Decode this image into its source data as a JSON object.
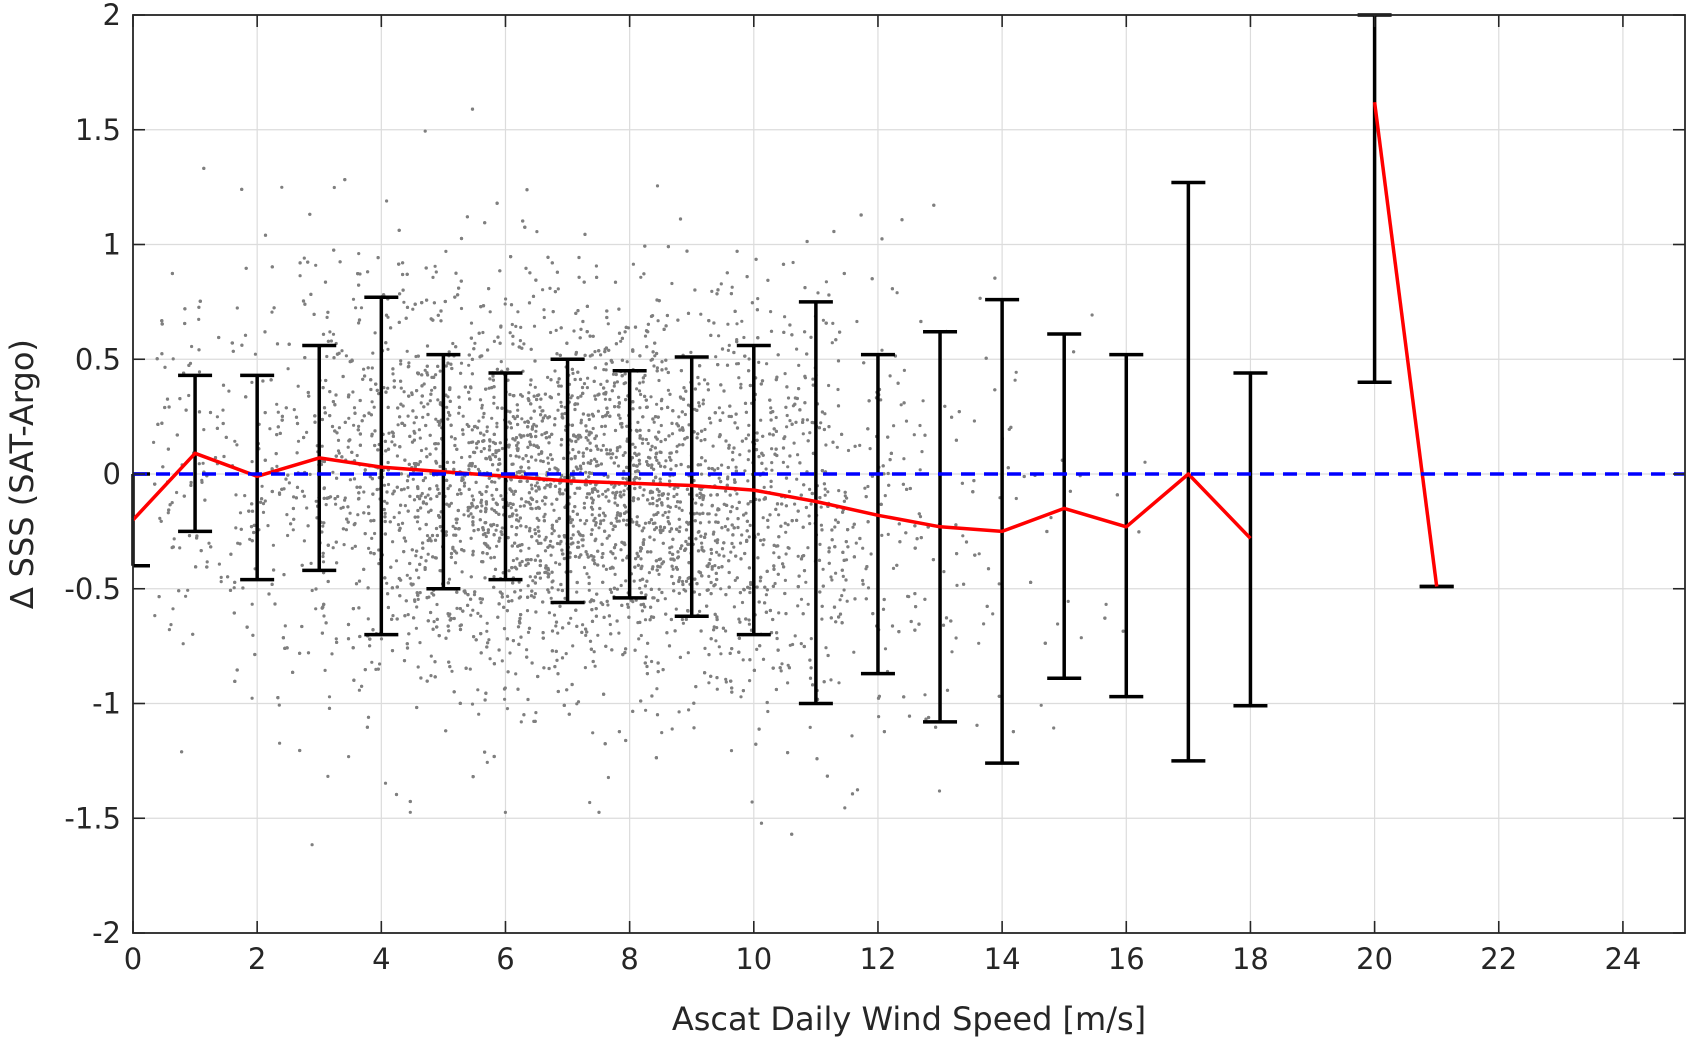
{
  "chart_data": {
    "type": "scatter",
    "title": "",
    "xlabel": "Ascat Daily Wind Speed [m/s]",
    "ylabel": "∆ SSS (SAT-Argo)",
    "xlim": [
      0,
      25
    ],
    "ylim": [
      -2,
      2
    ],
    "x_ticks": [
      0,
      2,
      4,
      6,
      8,
      10,
      12,
      14,
      16,
      18,
      20,
      22,
      24
    ],
    "y_ticks": [
      -2,
      -1.5,
      -1,
      -0.5,
      0,
      0.5,
      1,
      1.5,
      2
    ],
    "grid": true,
    "legend": "none",
    "colors": {
      "scatter": "#7f7f7f",
      "mean_line": "#ff0000",
      "error_bars": "#000000",
      "zero_line": "#0000ff"
    },
    "scatter_points": {
      "description_count": 6000,
      "center_x": 7,
      "spread_x": 3,
      "center_y": -0.05,
      "spread_y": 0.4
    },
    "mean_line": {
      "x": [
        0,
        1,
        2,
        3,
        4,
        5,
        6,
        7,
        8,
        9,
        10,
        11,
        12,
        13,
        14,
        15,
        16,
        17,
        18
      ],
      "y": [
        -0.2,
        0.09,
        -0.01,
        0.07,
        0.03,
        0.01,
        -0.01,
        -0.03,
        -0.04,
        -0.05,
        -0.07,
        -0.12,
        -0.18,
        -0.23,
        -0.25,
        -0.15,
        -0.23,
        0.0,
        -0.28
      ]
    },
    "mean_line_2": {
      "x": [
        20,
        21
      ],
      "y": [
        1.62,
        -0.49
      ]
    },
    "error_bars": [
      {
        "x": 0,
        "low": -0.4,
        "high": 0.0
      },
      {
        "x": 1,
        "low": -0.25,
        "high": 0.43
      },
      {
        "x": 2,
        "low": -0.46,
        "high": 0.43
      },
      {
        "x": 3,
        "low": -0.42,
        "high": 0.56
      },
      {
        "x": 4,
        "low": -0.7,
        "high": 0.77
      },
      {
        "x": 5,
        "low": -0.5,
        "high": 0.52
      },
      {
        "x": 6,
        "low": -0.46,
        "high": 0.44
      },
      {
        "x": 7,
        "low": -0.56,
        "high": 0.5
      },
      {
        "x": 8,
        "low": -0.54,
        "high": 0.45
      },
      {
        "x": 9,
        "low": -0.62,
        "high": 0.51
      },
      {
        "x": 10,
        "low": -0.7,
        "high": 0.56
      },
      {
        "x": 11,
        "low": -1.0,
        "high": 0.75
      },
      {
        "x": 12,
        "low": -0.87,
        "high": 0.52
      },
      {
        "x": 13,
        "low": -1.08,
        "high": 0.62
      },
      {
        "x": 14,
        "low": -1.26,
        "high": 0.76
      },
      {
        "x": 15,
        "low": -0.89,
        "high": 0.61
      },
      {
        "x": 16,
        "low": -0.97,
        "high": 0.52
      },
      {
        "x": 17,
        "low": -1.25,
        "high": 1.27
      },
      {
        "x": 18,
        "low": -1.01,
        "high": 0.44
      },
      {
        "x": 20,
        "low": 0.4,
        "high": 2.0
      },
      {
        "x": 21,
        "low": -0.49,
        "high": -0.49
      }
    ],
    "zero_line_y": 0
  }
}
